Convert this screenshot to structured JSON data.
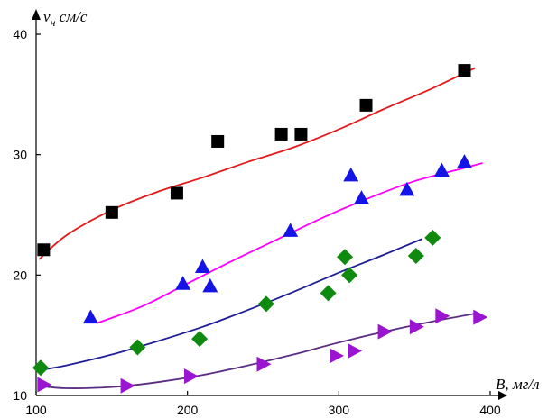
{
  "chart_data": {
    "type": "scatter",
    "title": "",
    "xlabel": "B, мг/л",
    "ylabel_main": "v",
    "ylabel_sub": "н",
    "ylabel_rest": " см/с",
    "xlim": [
      100,
      400
    ],
    "ylim": [
      10,
      40
    ],
    "x_ticks": [
      100,
      200,
      300,
      400
    ],
    "y_ticks": [
      10,
      20,
      30,
      40
    ],
    "grid": false,
    "legend": "none",
    "series": [
      {
        "marker": "square",
        "color": "#000000",
        "points": [
          [
            105,
            22.1
          ],
          [
            150,
            25.2
          ],
          [
            193,
            26.8
          ],
          [
            220,
            31.1
          ],
          [
            262,
            31.7
          ],
          [
            275,
            31.7
          ],
          [
            318,
            34.1
          ],
          [
            383,
            37.0
          ]
        ],
        "fit_color": "#e41a1c",
        "fit": [
          [
            102,
            21.3
          ],
          [
            120,
            23.3
          ],
          [
            150,
            25.4
          ],
          [
            180,
            26.9
          ],
          [
            210,
            28.1
          ],
          [
            240,
            29.4
          ],
          [
            270,
            30.6
          ],
          [
            300,
            32.1
          ],
          [
            330,
            33.8
          ],
          [
            360,
            35.4
          ],
          [
            390,
            37.2
          ]
        ]
      },
      {
        "marker": "triangle-up",
        "color": "#1414e6",
        "points": [
          [
            136,
            16.5
          ],
          [
            197,
            19.3
          ],
          [
            210,
            20.7
          ],
          [
            215,
            19.1
          ],
          [
            268,
            23.7
          ],
          [
            308,
            28.3
          ],
          [
            315,
            26.4
          ],
          [
            345,
            27.1
          ],
          [
            368,
            28.7
          ],
          [
            383,
            29.4
          ]
        ],
        "fit_color": "#ff00ff",
        "fit": [
          [
            140,
            16.0
          ],
          [
            170,
            17.4
          ],
          [
            200,
            19.3
          ],
          [
            230,
            21.2
          ],
          [
            260,
            23.0
          ],
          [
            290,
            24.8
          ],
          [
            320,
            26.4
          ],
          [
            350,
            27.8
          ],
          [
            380,
            28.8
          ],
          [
            395,
            29.3
          ]
        ]
      },
      {
        "marker": "diamond",
        "color": "#0e8a0e",
        "points": [
          [
            103,
            12.3
          ],
          [
            167,
            14.0
          ],
          [
            208,
            14.7
          ],
          [
            252,
            17.6
          ],
          [
            293,
            18.5
          ],
          [
            304,
            21.5
          ],
          [
            307,
            20.0
          ],
          [
            351,
            21.6
          ],
          [
            362,
            23.1
          ]
        ],
        "fit_color": "#1e1e96",
        "fit": [
          [
            102,
            12.1
          ],
          [
            120,
            12.5
          ],
          [
            150,
            13.4
          ],
          [
            180,
            14.5
          ],
          [
            210,
            15.7
          ],
          [
            240,
            17.1
          ],
          [
            270,
            18.6
          ],
          [
            300,
            20.2
          ],
          [
            330,
            21.7
          ],
          [
            355,
            23.0
          ]
        ]
      },
      {
        "marker": "triangle-right",
        "color": "#9a14d2",
        "points": [
          [
            105,
            10.9
          ],
          [
            160,
            10.8
          ],
          [
            202,
            11.6
          ],
          [
            250,
            12.6
          ],
          [
            298,
            13.3
          ],
          [
            310,
            13.7
          ],
          [
            330,
            15.3
          ],
          [
            351,
            15.7
          ],
          [
            368,
            16.6
          ],
          [
            393,
            16.5
          ]
        ],
        "fit_color": "#5a2d82",
        "fit": [
          [
            102,
            10.8
          ],
          [
            120,
            10.6
          ],
          [
            150,
            10.7
          ],
          [
            180,
            11.1
          ],
          [
            210,
            11.7
          ],
          [
            240,
            12.5
          ],
          [
            270,
            13.4
          ],
          [
            300,
            14.4
          ],
          [
            330,
            15.3
          ],
          [
            360,
            16.1
          ],
          [
            390,
            16.8
          ]
        ]
      }
    ]
  }
}
